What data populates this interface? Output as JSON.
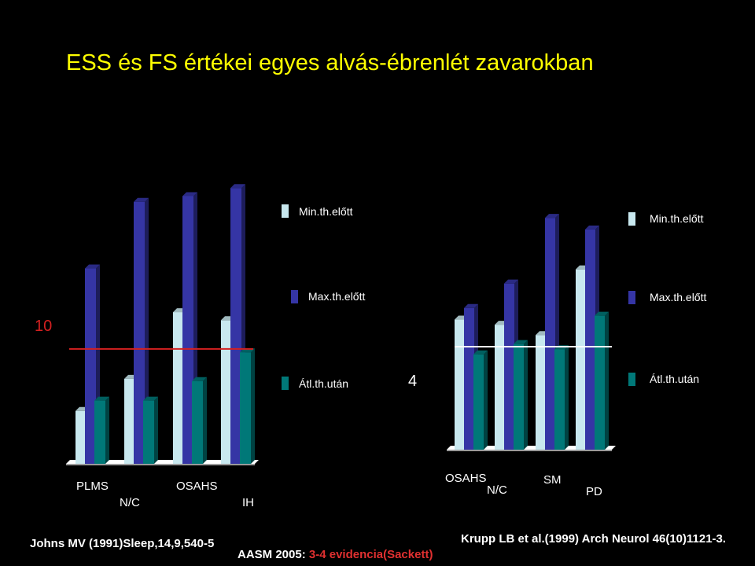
{
  "title": "ESS és FS értékei egyes alvás-ébrenlét zavarokban",
  "colors": {
    "min": "#c8e8ef",
    "max": "#3535a5",
    "avg": "#007878",
    "ref_left": "#d42020",
    "ref_right": "#ffffff",
    "title": "#ffff00",
    "citation_red": "#e03030"
  },
  "chart_data": [
    {
      "type": "bar",
      "name": "ESS",
      "categories": [
        "PLMS",
        "N/C",
        "OSAHS",
        "IH"
      ],
      "series": [
        {
          "name": "Min.th.előtt",
          "values": [
            4.6,
            7.4,
            13.2,
            12.5
          ]
        },
        {
          "name": "Max.th.előtt",
          "values": [
            17.0,
            22.8,
            23.3,
            24.0
          ]
        },
        {
          "name": "Átl.th.után",
          "values": [
            5.5,
            5.5,
            7.2,
            9.7
          ]
        }
      ],
      "reference_line": {
        "value": 10,
        "label": "10",
        "color": "#d42020"
      },
      "ylim": [
        0,
        26
      ],
      "legend": "right"
    },
    {
      "type": "bar",
      "name": "FS",
      "categories": [
        "OSAHS",
        "N/C",
        "SM",
        "PD"
      ],
      "series": [
        {
          "name": "Min.th.előtt",
          "values": [
            5.05,
            4.85,
            4.45,
            7.0
          ]
        },
        {
          "name": "Max.th.előtt",
          "values": [
            5.5,
            6.45,
            9.0,
            8.55
          ]
        },
        {
          "name": "Átl.th.után",
          "values": [
            3.7,
            4.1,
            3.9,
            5.2
          ]
        }
      ],
      "reference_line": {
        "value": 4,
        "label": "4",
        "color": "#ffffff"
      },
      "ylim": [
        0,
        10.5
      ],
      "legend": "right"
    }
  ],
  "left_chart": {
    "categories_upper": [
      "PLMS",
      "OSAHS"
    ],
    "categories_lower": [
      "N/C",
      "IH"
    ],
    "ref_label": "10",
    "legend": [
      "Min.th.előtt",
      "Max.th.előtt",
      "Átl.th.után"
    ]
  },
  "right_chart": {
    "categories_upper": [
      "OSAHS",
      "SM"
    ],
    "categories_lower": [
      "N/C",
      "PD"
    ],
    "ref_label": "4",
    "legend": [
      "Min.th.előtt",
      "Max.th.előtt",
      "Átl.th.után"
    ]
  },
  "citations": {
    "left": "Johns MV (1991)Sleep,14,9,540-5",
    "middle_prefix": "AASM 2005: ",
    "middle_highlight": "3-4 evidencia(Sackett)",
    "right": "Krupp LB et al.(1999) Arch Neurol 46(10)1121-3."
  }
}
